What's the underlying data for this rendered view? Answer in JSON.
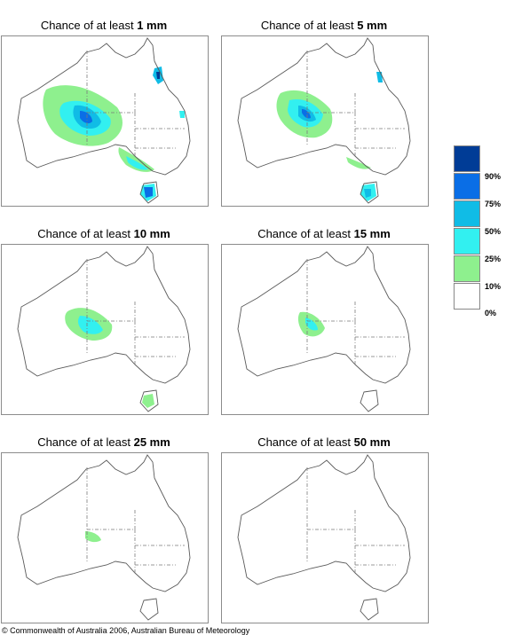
{
  "panels": [
    {
      "prefix": "Chance of at least ",
      "amount": "1 mm"
    },
    {
      "prefix": "Chance of at least ",
      "amount": "5 mm"
    },
    {
      "prefix": "Chance of at least ",
      "amount": "10 mm"
    },
    {
      "prefix": "Chance of at least ",
      "amount": "15 mm"
    },
    {
      "prefix": "Chance of at least ",
      "amount": "25 mm"
    },
    {
      "prefix": "Chance of at least ",
      "amount": "50 mm"
    }
  ],
  "legend": {
    "labels": [
      "90%",
      "75%",
      "50%",
      "25%",
      "10%",
      "0%"
    ],
    "colors": [
      "#003c96",
      "#0a6ee6",
      "#10bce6",
      "#32f0f0",
      "#8ef08e",
      "#ffffff"
    ]
  },
  "copyright": "© Commonwealth of Australia 2006, Australian Bureau of Meteorology"
}
